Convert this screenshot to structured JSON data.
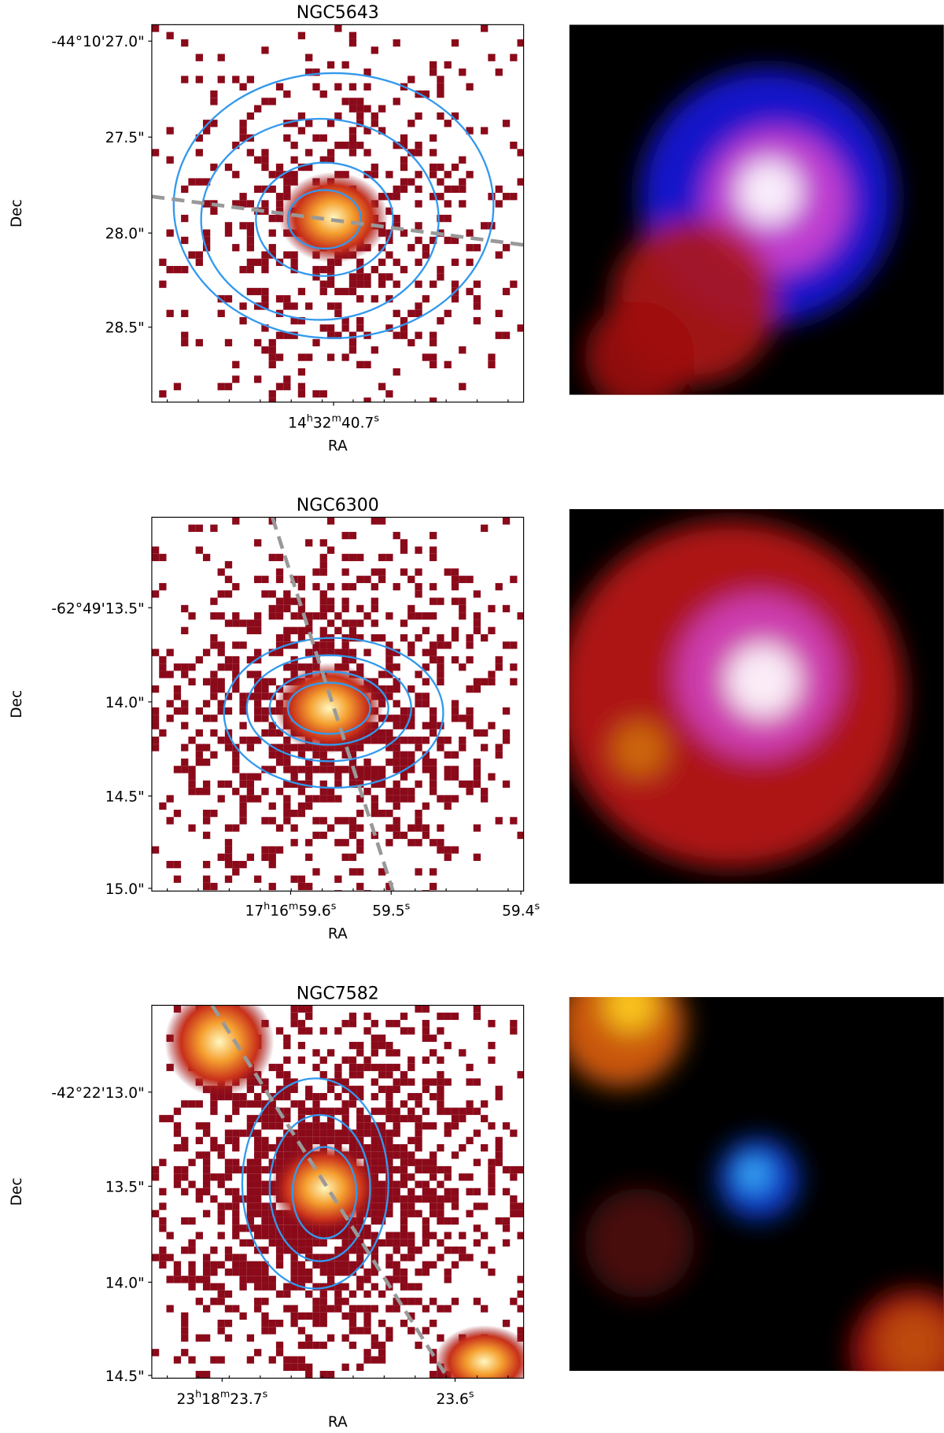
{
  "panels": [
    {
      "title": "NGC5643",
      "x_label": "RA",
      "y_label": "Dec",
      "y_ticks": [
        "-44°10'27.0\"",
        "27.5\"",
        "28.0\"",
        "28.5\""
      ],
      "x_ticks": [
        [
          {
            "text": "14"
          },
          {
            "text": "h",
            "sup": true
          },
          {
            "text": "32"
          },
          {
            "text": "m",
            "sup": true
          },
          {
            "text": "40.7"
          },
          {
            "text": "s",
            "sup": true
          }
        ]
      ]
    },
    {
      "title": "NGC6300",
      "x_label": "RA",
      "y_label": "Dec",
      "y_ticks": [
        "-62°49'13.5\"",
        "14.0\"",
        "14.5\"",
        "15.0\""
      ],
      "x_ticks": [
        [
          {
            "text": "17"
          },
          {
            "text": "h",
            "sup": true
          },
          {
            "text": "16"
          },
          {
            "text": "m",
            "sup": true
          },
          {
            "text": "59.6"
          },
          {
            "text": "s",
            "sup": true
          }
        ],
        [
          {
            "text": "59.5"
          },
          {
            "text": "s",
            "sup": true
          }
        ],
        [
          {
            "text": "59.4"
          },
          {
            "text": "s",
            "sup": true
          }
        ]
      ]
    },
    {
      "title": "NGC7582",
      "x_label": "RA",
      "y_label": "Dec",
      "y_ticks": [
        "-42°22'13.0\"",
        "13.5\"",
        "14.0\"",
        "14.5\""
      ],
      "x_ticks": [
        [
          {
            "text": "23"
          },
          {
            "text": "h",
            "sup": true
          },
          {
            "text": "18"
          },
          {
            "text": "m",
            "sup": true
          },
          {
            "text": "23.7"
          },
          {
            "text": "s",
            "sup": true
          }
        ],
        [
          {
            "text": "23.6"
          },
          {
            "text": "s",
            "sup": true
          }
        ]
      ]
    }
  ]
}
